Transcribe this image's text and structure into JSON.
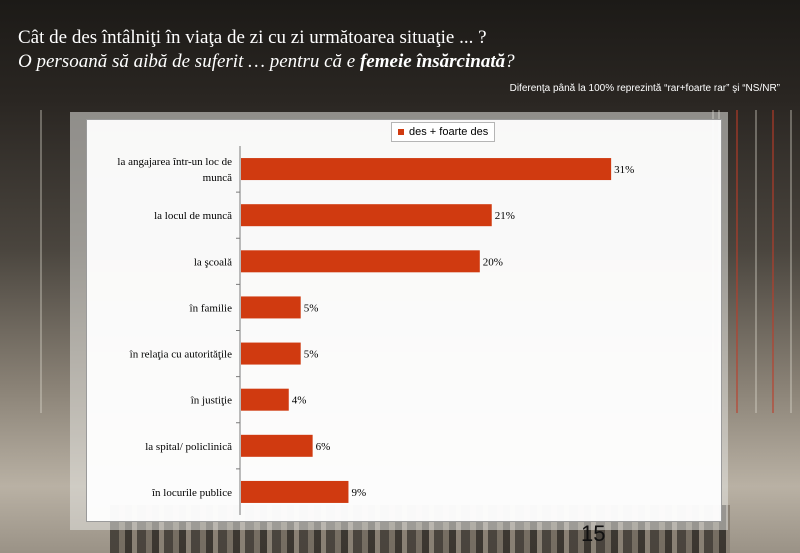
{
  "header": {
    "line1": "Cât de des întâlniţi în viaţa de zi cu zi următoarea situaţie ... ?",
    "line2_prefix": "O persoană să aibă de suferit … pentru că e ",
    "line2_bold": "femeie însărcinată",
    "line2_suffix": "?"
  },
  "note": "Diferenţa până la 100% reprezintă  “rar+foarte rar” şi “NS/NR”",
  "page_number": "15",
  "colors": {
    "bar": "#d03a10",
    "accent": "#d03a10"
  },
  "chart_data": {
    "type": "bar",
    "orientation": "horizontal",
    "legend_position": "top-center",
    "grid": false,
    "xlim": [
      0,
      40
    ],
    "series": [
      {
        "name": "des + foarte des",
        "values": [
          31,
          21,
          20,
          5,
          5,
          4,
          6,
          9
        ],
        "labels": [
          "31%",
          "21%",
          "20%",
          "5%",
          "5%",
          "4%",
          "6%",
          "9%"
        ]
      }
    ],
    "categories": [
      [
        "la angajarea într-un loc de",
        "muncă"
      ],
      [
        "la locul de muncă"
      ],
      [
        "la şcoală"
      ],
      [
        "în familie"
      ],
      [
        "în relaţia cu autorităţile"
      ],
      [
        "în justiţie"
      ],
      [
        "la spital/ policlinică"
      ],
      [
        "în locurile publice"
      ]
    ]
  }
}
